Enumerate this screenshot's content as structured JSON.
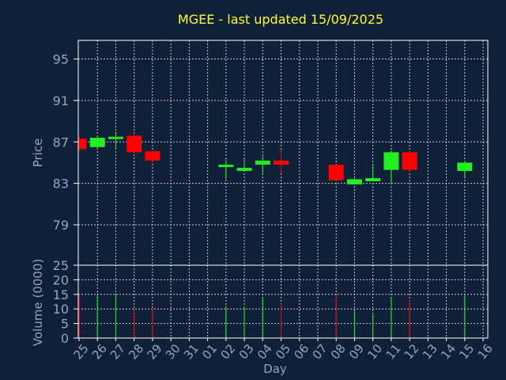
{
  "chart_data": {
    "type": "candlestick",
    "title": "MGEE - last updated 15/09/2025",
    "xlabel": "Day",
    "ylabel": "Price",
    "volume_label": "Volume (0000)",
    "grid": true,
    "x_ticks": [
      "25",
      "26",
      "27",
      "28",
      "29",
      "30",
      "31",
      "01",
      "02",
      "03",
      "04",
      "05",
      "06",
      "07",
      "08",
      "09",
      "10",
      "11",
      "12",
      "13",
      "14",
      "15",
      "16"
    ],
    "price_ticks": [
      79,
      83,
      87,
      91,
      95
    ],
    "price_range": [
      75.1,
      96.8
    ],
    "volume_ticks": [
      0,
      5,
      10,
      15,
      20,
      25
    ],
    "volume_range": [
      0,
      25
    ],
    "colors": {
      "up": "#22ee22",
      "down": "#ff0000",
      "background": "#0f2038",
      "title": "#ffff33",
      "axis_text": "#8ea6c4",
      "grid": "#c8c8c8"
    },
    "candles": [
      {
        "day": "25",
        "open": 87.3,
        "close": 86.3,
        "high": 87.5,
        "low": 86.2,
        "volume": 14.8
      },
      {
        "day": "26",
        "open": 86.5,
        "close": 87.4,
        "high": 87.6,
        "low": 86.4,
        "volume": 14.5
      },
      {
        "day": "27",
        "open": 87.3,
        "close": 87.5,
        "high": 88.0,
        "low": 86.4,
        "volume": 14.8
      },
      {
        "day": "28",
        "open": 87.6,
        "close": 86.0,
        "high": 87.7,
        "low": 85.9,
        "volume": 10.0
      },
      {
        "day": "29",
        "open": 86.1,
        "close": 85.2,
        "high": 86.1,
        "low": 85.0,
        "volume": 10.3
      },
      {
        "day": "02",
        "open": 84.6,
        "close": 84.8,
        "high": 85.3,
        "low": 83.4,
        "volume": 10.4
      },
      {
        "day": "03",
        "open": 84.2,
        "close": 84.5,
        "high": 85.4,
        "low": 84.2,
        "volume": 10.8
      },
      {
        "day": "04",
        "open": 84.8,
        "close": 85.2,
        "high": 85.6,
        "low": 83.8,
        "volume": 14.0
      },
      {
        "day": "05",
        "open": 85.2,
        "close": 84.8,
        "high": 86.3,
        "low": 84.0,
        "volume": 11.8
      },
      {
        "day": "08",
        "open": 84.8,
        "close": 83.3,
        "high": 84.8,
        "low": 83.2,
        "volume": 14.2
      },
      {
        "day": "09",
        "open": 82.9,
        "close": 83.4,
        "high": 83.5,
        "low": 82.9,
        "volume": 9.2
      },
      {
        "day": "10",
        "open": 83.2,
        "close": 83.5,
        "high": 84.9,
        "low": 83.2,
        "volume": 8.8
      },
      {
        "day": "11",
        "open": 84.3,
        "close": 86.0,
        "high": 86.2,
        "low": 83.0,
        "volume": 14.2
      },
      {
        "day": "12",
        "open": 86.0,
        "close": 84.3,
        "high": 86.1,
        "low": 84.1,
        "volume": 13.0
      },
      {
        "day": "15",
        "open": 84.2,
        "close": 85.0,
        "high": 85.1,
        "low": 83.6,
        "volume": 15.0
      }
    ]
  }
}
